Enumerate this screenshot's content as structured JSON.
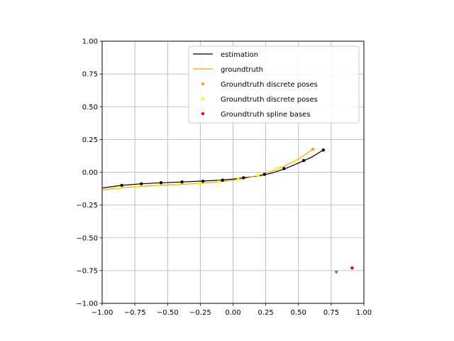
{
  "chart_data": {
    "type": "line",
    "title": "",
    "xlabel": "",
    "ylabel": "",
    "xlim": [
      -1.0,
      1.0
    ],
    "ylim": [
      -1.0,
      1.0
    ],
    "grid": true,
    "legend_position": "top-right",
    "x_ticks": [
      "−1.00",
      "−0.75",
      "−0.50",
      "−0.25",
      "0.00",
      "0.25",
      "0.50",
      "0.75",
      "1.00"
    ],
    "y_ticks": [
      "−1.00",
      "−0.75",
      "−0.50",
      "−0.25",
      "0.00",
      "0.25",
      "0.50",
      "0.75",
      "1.00"
    ],
    "series": [
      {
        "name": "estimation",
        "kind": "line",
        "color": "#000000",
        "x": [
          -1.0,
          -0.85,
          -0.7,
          -0.55,
          -0.4,
          -0.25,
          -0.1,
          0.0,
          0.08,
          0.2,
          0.3,
          0.4,
          0.5,
          0.6,
          0.69
        ],
        "y": [
          -0.12,
          -0.1,
          -0.088,
          -0.08,
          -0.074,
          -0.068,
          -0.06,
          -0.052,
          -0.042,
          -0.028,
          -0.005,
          0.028,
          0.07,
          0.115,
          0.17
        ]
      },
      {
        "name": "groundtruth",
        "kind": "line",
        "color": "#ffa500",
        "x": [
          -1.0,
          -0.85,
          -0.7,
          -0.55,
          -0.4,
          -0.25,
          -0.1,
          0.0,
          0.1,
          0.2,
          0.3,
          0.4,
          0.5,
          0.61
        ],
        "y": [
          -0.135,
          -0.118,
          -0.108,
          -0.1,
          -0.092,
          -0.085,
          -0.073,
          -0.06,
          -0.045,
          -0.022,
          0.01,
          0.05,
          0.1,
          0.175
        ]
      },
      {
        "name": "Groundtruth discrete poses",
        "kind": "scatter",
        "color": "#ffa500",
        "x": [
          0.61
        ],
        "y": [
          0.175
        ]
      },
      {
        "name": "Groundtruth discrete poses",
        "kind": "scatter",
        "color": "#ffff00",
        "x": [
          -0.88,
          -0.73,
          -0.57,
          -0.42,
          -0.26,
          -0.11,
          0.04,
          0.19,
          0.34,
          0.48
        ],
        "y": [
          -0.125,
          -0.11,
          -0.1,
          -0.092,
          -0.085,
          -0.073,
          -0.055,
          -0.025,
          0.03,
          0.09
        ]
      },
      {
        "name": "Groundtruth spline bases",
        "kind": "scatter",
        "color": "#ff0000",
        "x": [
          0.91
        ],
        "y": [
          -0.73
        ]
      },
      {
        "name": "",
        "kind": "scatter",
        "color": "#808080",
        "x": [
          0.79
        ],
        "y": [
          -0.76
        ]
      },
      {
        "name": "",
        "kind": "scatter",
        "color": "#000000",
        "x": [
          -0.85,
          -0.7,
          -0.55,
          -0.39,
          -0.23,
          -0.08,
          0.08,
          0.24,
          0.39,
          0.54,
          0.69
        ],
        "y": [
          -0.1,
          -0.088,
          -0.08,
          -0.074,
          -0.068,
          -0.06,
          -0.042,
          -0.016,
          0.028,
          0.09,
          0.17
        ]
      }
    ],
    "legend": [
      {
        "label": "estimation",
        "marker": "line",
        "color": "#000000"
      },
      {
        "label": "groundtruth",
        "marker": "line",
        "color": "#ffa500"
      },
      {
        "label": "Groundtruth discrete poses",
        "marker": "dot",
        "color": "#ffa500"
      },
      {
        "label": "Groundtruth discrete poses",
        "marker": "dot",
        "color": "#ffff00"
      },
      {
        "label": "Groundtruth spline bases",
        "marker": "dot",
        "color": "#ff0000"
      }
    ]
  }
}
